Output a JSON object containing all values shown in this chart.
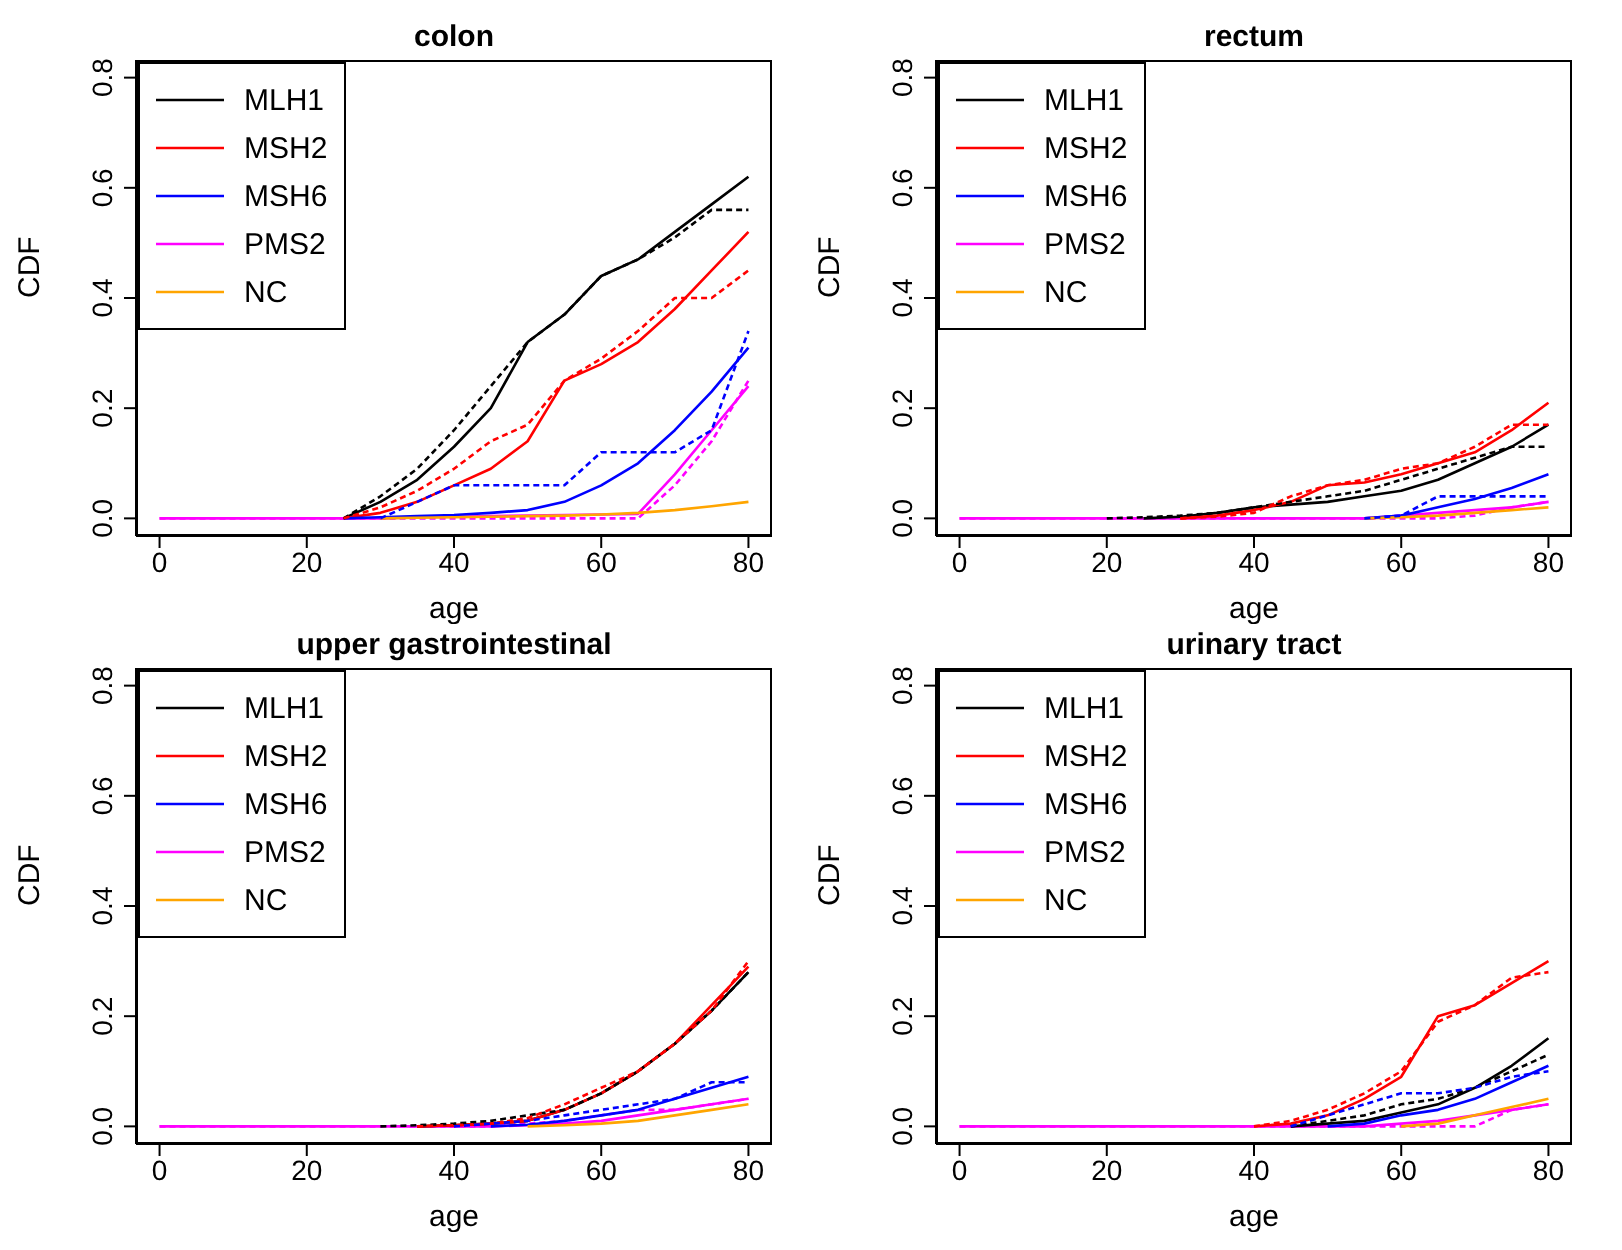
{
  "chart_data": [
    {
      "type": "line",
      "title": "colon",
      "xlabel": "age",
      "ylabel": "CDF",
      "x": [
        0,
        5,
        10,
        15,
        20,
        25,
        30,
        35,
        40,
        45,
        50,
        55,
        60,
        65,
        70,
        75,
        80
      ],
      "xlim": [
        -3.2,
        83.2
      ],
      "xticks": [
        0,
        20,
        40,
        60,
        80
      ],
      "ylim": [
        -0.032,
        0.832
      ],
      "yticks": [
        {
          "value": 0,
          "label": "0.0"
        },
        {
          "value": 0.2,
          "label": "0.2"
        },
        {
          "value": 0.4,
          "label": "0.4"
        },
        {
          "value": 0.6,
          "label": "0.6"
        },
        {
          "value": 0.8,
          "label": "0.8"
        }
      ],
      "legend": "top left",
      "grid": false,
      "marker": "none",
      "series": [
        {
          "name": "MLH1",
          "color": "#000000",
          "line_style": "solid",
          "values": [
            null,
            null,
            null,
            null,
            null,
            0,
            0.03,
            0.07,
            0.13,
            0.2,
            0.32,
            0.37,
            0.44,
            0.47,
            0.52,
            0.57,
            0.62
          ]
        },
        {
          "name": "MSH2",
          "color": "#ff0000",
          "line_style": "solid",
          "values": [
            null,
            null,
            null,
            null,
            null,
            0,
            0.01,
            0.03,
            0.06,
            0.09,
            0.14,
            0.25,
            0.28,
            0.32,
            0.38,
            0.45,
            0.52
          ]
        },
        {
          "name": "MSH6",
          "color": "#0000ff",
          "line_style": "solid",
          "values": [
            null,
            null,
            null,
            null,
            null,
            0,
            0.002,
            0.004,
            0.006,
            0.01,
            0.015,
            0.03,
            0.06,
            0.1,
            0.16,
            0.23,
            0.31
          ]
        },
        {
          "name": "PMS2",
          "color": "#ff00ff",
          "line_style": "solid",
          "values": [
            0,
            0,
            0,
            0,
            0,
            0,
            0,
            0.002,
            0.003,
            0.004,
            0.005,
            0.006,
            0.007,
            0.008,
            0.08,
            0.16,
            0.24
          ]
        },
        {
          "name": "NC",
          "color": "#ffa500",
          "line_style": "solid",
          "values": [
            null,
            null,
            null,
            null,
            null,
            null,
            0,
            0.001,
            0.002,
            0.003,
            0.004,
            0.005,
            0.007,
            0.01,
            0.015,
            0.022,
            0.03
          ]
        },
        {
          "color": "#000000",
          "line_style": "dashed",
          "values": [
            null,
            null,
            null,
            null,
            null,
            0,
            0.04,
            0.09,
            0.16,
            0.24,
            0.32,
            0.37,
            0.44,
            0.47,
            0.51,
            0.56,
            0.56
          ]
        },
        {
          "color": "#ff0000",
          "line_style": "dashed",
          "values": [
            null,
            null,
            null,
            null,
            null,
            0,
            0.02,
            0.05,
            0.09,
            0.14,
            0.17,
            0.25,
            0.29,
            0.34,
            0.4,
            0.4,
            0.45
          ]
        },
        {
          "color": "#0000ff",
          "line_style": "dashed",
          "values": [
            null,
            null,
            null,
            null,
            null,
            null,
            0,
            0.03,
            0.06,
            0.06,
            0.06,
            0.06,
            0.12,
            0.12,
            0.12,
            0.16,
            0.34
          ]
        },
        {
          "color": "#ff00ff",
          "line_style": "dashed",
          "values": [
            0,
            0,
            0,
            0,
            0,
            0,
            0,
            0,
            0,
            0,
            0,
            0,
            0,
            0,
            0.06,
            0.14,
            0.25
          ]
        }
      ]
    },
    {
      "type": "line",
      "title": "rectum",
      "xlabel": "age",
      "ylabel": "CDF",
      "x": [
        0,
        5,
        10,
        15,
        20,
        25,
        30,
        35,
        40,
        45,
        50,
        55,
        60,
        65,
        70,
        75,
        80
      ],
      "xlim": [
        -3.2,
        83.2
      ],
      "xticks": [
        0,
        20,
        40,
        60,
        80
      ],
      "ylim": [
        -0.032,
        0.832
      ],
      "yticks": [
        {
          "value": 0,
          "label": "0.0"
        },
        {
          "value": 0.2,
          "label": "0.2"
        },
        {
          "value": 0.4,
          "label": "0.4"
        },
        {
          "value": 0.6,
          "label": "0.6"
        },
        {
          "value": 0.8,
          "label": "0.8"
        }
      ],
      "legend": "top left",
      "grid": false,
      "marker": "none",
      "series": [
        {
          "name": "MLH1",
          "color": "#000000",
          "line_style": "solid",
          "values": [
            null,
            null,
            null,
            null,
            null,
            0,
            0.003,
            0.01,
            0.02,
            0.025,
            0.03,
            0.04,
            0.05,
            0.07,
            0.1,
            0.13,
            0.17
          ]
        },
        {
          "name": "MSH2",
          "color": "#ff0000",
          "line_style": "solid",
          "values": [
            null,
            null,
            null,
            null,
            null,
            null,
            0,
            0.005,
            0.015,
            0.03,
            0.06,
            0.065,
            0.08,
            0.1,
            0.12,
            0.16,
            0.21
          ]
        },
        {
          "name": "MSH6",
          "color": "#0000ff",
          "line_style": "solid",
          "values": [
            null,
            null,
            null,
            null,
            null,
            null,
            null,
            null,
            null,
            null,
            null,
            0,
            0.005,
            0.02,
            0.035,
            0.055,
            0.08
          ]
        },
        {
          "name": "PMS2",
          "color": "#ff00ff",
          "line_style": "solid",
          "values": [
            0,
            0,
            0,
            0,
            0,
            0,
            0,
            0,
            0,
            0,
            0,
            0,
            0.005,
            0.01,
            0.015,
            0.02,
            0.03
          ]
        },
        {
          "name": "NC",
          "color": "#ffa500",
          "line_style": "solid",
          "values": [
            null,
            null,
            null,
            null,
            null,
            null,
            null,
            null,
            null,
            null,
            null,
            0,
            0.002,
            0.005,
            0.01,
            0.015,
            0.02
          ]
        },
        {
          "color": "#000000",
          "line_style": "dashed",
          "values": [
            null,
            null,
            null,
            null,
            0,
            0.002,
            0.005,
            0.01,
            0.02,
            0.03,
            0.04,
            0.05,
            0.07,
            0.09,
            0.11,
            0.13,
            0.13
          ]
        },
        {
          "color": "#ff0000",
          "line_style": "dashed",
          "values": [
            null,
            null,
            null,
            null,
            null,
            null,
            0,
            0.003,
            0.01,
            0.04,
            0.06,
            0.07,
            0.09,
            0.1,
            0.13,
            0.17,
            0.17
          ]
        },
        {
          "color": "#0000ff",
          "line_style": "dashed",
          "values": [
            null,
            null,
            null,
            null,
            null,
            null,
            null,
            null,
            null,
            null,
            null,
            0,
            0.005,
            0.04,
            0.04,
            0.04,
            0.04
          ]
        },
        {
          "color": "#ff00ff",
          "line_style": "dashed",
          "values": [
            0,
            0,
            0,
            0,
            0,
            0,
            0,
            0,
            0,
            0,
            0,
            0,
            0,
            0,
            0.005,
            0.02,
            0.03
          ]
        }
      ]
    },
    {
      "type": "line",
      "title": "upper gastrointestinal",
      "xlabel": "age",
      "ylabel": "CDF",
      "x": [
        0,
        5,
        10,
        15,
        20,
        25,
        30,
        35,
        40,
        45,
        50,
        55,
        60,
        65,
        70,
        75,
        80
      ],
      "xlim": [
        -3.2,
        83.2
      ],
      "xticks": [
        0,
        20,
        40,
        60,
        80
      ],
      "ylim": [
        -0.032,
        0.832
      ],
      "yticks": [
        {
          "value": 0,
          "label": "0.0"
        },
        {
          "value": 0.2,
          "label": "0.2"
        },
        {
          "value": 0.4,
          "label": "0.4"
        },
        {
          "value": 0.6,
          "label": "0.6"
        },
        {
          "value": 0.8,
          "label": "0.8"
        }
      ],
      "legend": "top left",
      "grid": false,
      "marker": "none",
      "series": [
        {
          "name": "MLH1",
          "color": "#000000",
          "line_style": "solid",
          "values": [
            null,
            null,
            null,
            null,
            null,
            null,
            null,
            0,
            0.002,
            0.005,
            0.01,
            0.03,
            0.06,
            0.1,
            0.15,
            0.21,
            0.28
          ]
        },
        {
          "name": "MSH2",
          "color": "#ff0000",
          "line_style": "solid",
          "values": [
            null,
            null,
            null,
            null,
            null,
            null,
            null,
            0,
            0.002,
            0.005,
            0.01,
            0.03,
            0.06,
            0.1,
            0.15,
            0.22,
            0.29
          ]
        },
        {
          "name": "MSH6",
          "color": "#0000ff",
          "line_style": "solid",
          "values": [
            null,
            null,
            null,
            null,
            null,
            null,
            null,
            null,
            null,
            0,
            0.003,
            0.01,
            0.02,
            0.03,
            0.05,
            0.07,
            0.09
          ]
        },
        {
          "name": "PMS2",
          "color": "#ff00ff",
          "line_style": "solid",
          "values": [
            0,
            0,
            0,
            0,
            0,
            0,
            0,
            0,
            0,
            0,
            0.002,
            0.005,
            0.01,
            0.02,
            0.03,
            0.04,
            0.05
          ]
        },
        {
          "name": "NC",
          "color": "#ffa500",
          "line_style": "solid",
          "values": [
            null,
            null,
            null,
            null,
            null,
            null,
            null,
            null,
            null,
            null,
            0,
            0.002,
            0.005,
            0.01,
            0.02,
            0.03,
            0.04
          ]
        },
        {
          "color": "#000000",
          "line_style": "dashed",
          "values": [
            null,
            null,
            null,
            null,
            null,
            null,
            0,
            0.002,
            0.005,
            0.01,
            0.02,
            0.03,
            0.06,
            0.1,
            0.15,
            0.21,
            0.28
          ]
        },
        {
          "color": "#ff0000",
          "line_style": "dashed",
          "values": [
            null,
            null,
            null,
            null,
            null,
            null,
            null,
            0,
            0.002,
            0.005,
            0.015,
            0.04,
            0.07,
            0.1,
            0.15,
            0.21,
            0.3
          ]
        },
        {
          "color": "#0000ff",
          "line_style": "dashed",
          "values": [
            null,
            null,
            null,
            null,
            null,
            null,
            null,
            null,
            0,
            0.005,
            0.01,
            0.02,
            0.03,
            0.04,
            0.05,
            0.08,
            0.08
          ]
        },
        {
          "color": "#ff00ff",
          "line_style": "dashed",
          "values": [
            0,
            0,
            0,
            0,
            0,
            0,
            0,
            0,
            0,
            0,
            0.005,
            0.01,
            0.02,
            0.03,
            0.03,
            0.04,
            0.05
          ]
        }
      ]
    },
    {
      "type": "line",
      "title": "urinary tract",
      "xlabel": "age",
      "ylabel": "CDF",
      "x": [
        0,
        5,
        10,
        15,
        20,
        25,
        30,
        35,
        40,
        45,
        50,
        55,
        60,
        65,
        70,
        75,
        80
      ],
      "xlim": [
        -3.2,
        83.2
      ],
      "xticks": [
        0,
        20,
        40,
        60,
        80
      ],
      "ylim": [
        -0.032,
        0.832
      ],
      "yticks": [
        {
          "value": 0,
          "label": "0.0"
        },
        {
          "value": 0.2,
          "label": "0.2"
        },
        {
          "value": 0.4,
          "label": "0.4"
        },
        {
          "value": 0.6,
          "label": "0.6"
        },
        {
          "value": 0.8,
          "label": "0.8"
        }
      ],
      "legend": "top left",
      "grid": false,
      "marker": "none",
      "series": [
        {
          "name": "MLH1",
          "color": "#000000",
          "line_style": "solid",
          "values": [
            null,
            null,
            null,
            null,
            null,
            null,
            null,
            null,
            null,
            0,
            0.005,
            0.01,
            0.025,
            0.04,
            0.07,
            0.11,
            0.16
          ]
        },
        {
          "name": "MSH2",
          "color": "#ff0000",
          "line_style": "solid",
          "values": [
            null,
            null,
            null,
            null,
            null,
            null,
            null,
            null,
            0,
            0.005,
            0.02,
            0.05,
            0.09,
            0.2,
            0.22,
            0.26,
            0.3
          ]
        },
        {
          "name": "MSH6",
          "color": "#0000ff",
          "line_style": "solid",
          "values": [
            null,
            null,
            null,
            null,
            null,
            null,
            null,
            null,
            null,
            null,
            0,
            0.005,
            0.02,
            0.03,
            0.05,
            0.08,
            0.11
          ]
        },
        {
          "name": "PMS2",
          "color": "#ff00ff",
          "line_style": "solid",
          "values": [
            0,
            0,
            0,
            0,
            0,
            0,
            0,
            0,
            0,
            0,
            0,
            0,
            0.005,
            0.01,
            0.02,
            0.03,
            0.04
          ]
        },
        {
          "name": "NC",
          "color": "#ffa500",
          "line_style": "solid",
          "values": [
            null,
            null,
            null,
            null,
            null,
            null,
            null,
            null,
            null,
            null,
            null,
            null,
            0,
            0.005,
            0.02,
            0.035,
            0.05
          ]
        },
        {
          "color": "#000000",
          "line_style": "dashed",
          "values": [
            null,
            null,
            null,
            null,
            null,
            null,
            null,
            null,
            null,
            0,
            0.01,
            0.02,
            0.04,
            0.05,
            0.07,
            0.1,
            0.13
          ]
        },
        {
          "color": "#ff0000",
          "line_style": "dashed",
          "values": [
            null,
            null,
            null,
            null,
            null,
            null,
            null,
            null,
            0,
            0.01,
            0.03,
            0.06,
            0.1,
            0.19,
            0.22,
            0.27,
            0.28
          ]
        },
        {
          "color": "#0000ff",
          "line_style": "dashed",
          "values": [
            null,
            null,
            null,
            null,
            null,
            null,
            null,
            null,
            null,
            0,
            0.02,
            0.04,
            0.06,
            0.06,
            0.07,
            0.09,
            0.1
          ]
        },
        {
          "color": "#ff00ff",
          "line_style": "dashed",
          "values": [
            0,
            0,
            0,
            0,
            0,
            0,
            0,
            0,
            0,
            0,
            0,
            0,
            0,
            0,
            0,
            0.03,
            0.04
          ]
        }
      ]
    }
  ]
}
